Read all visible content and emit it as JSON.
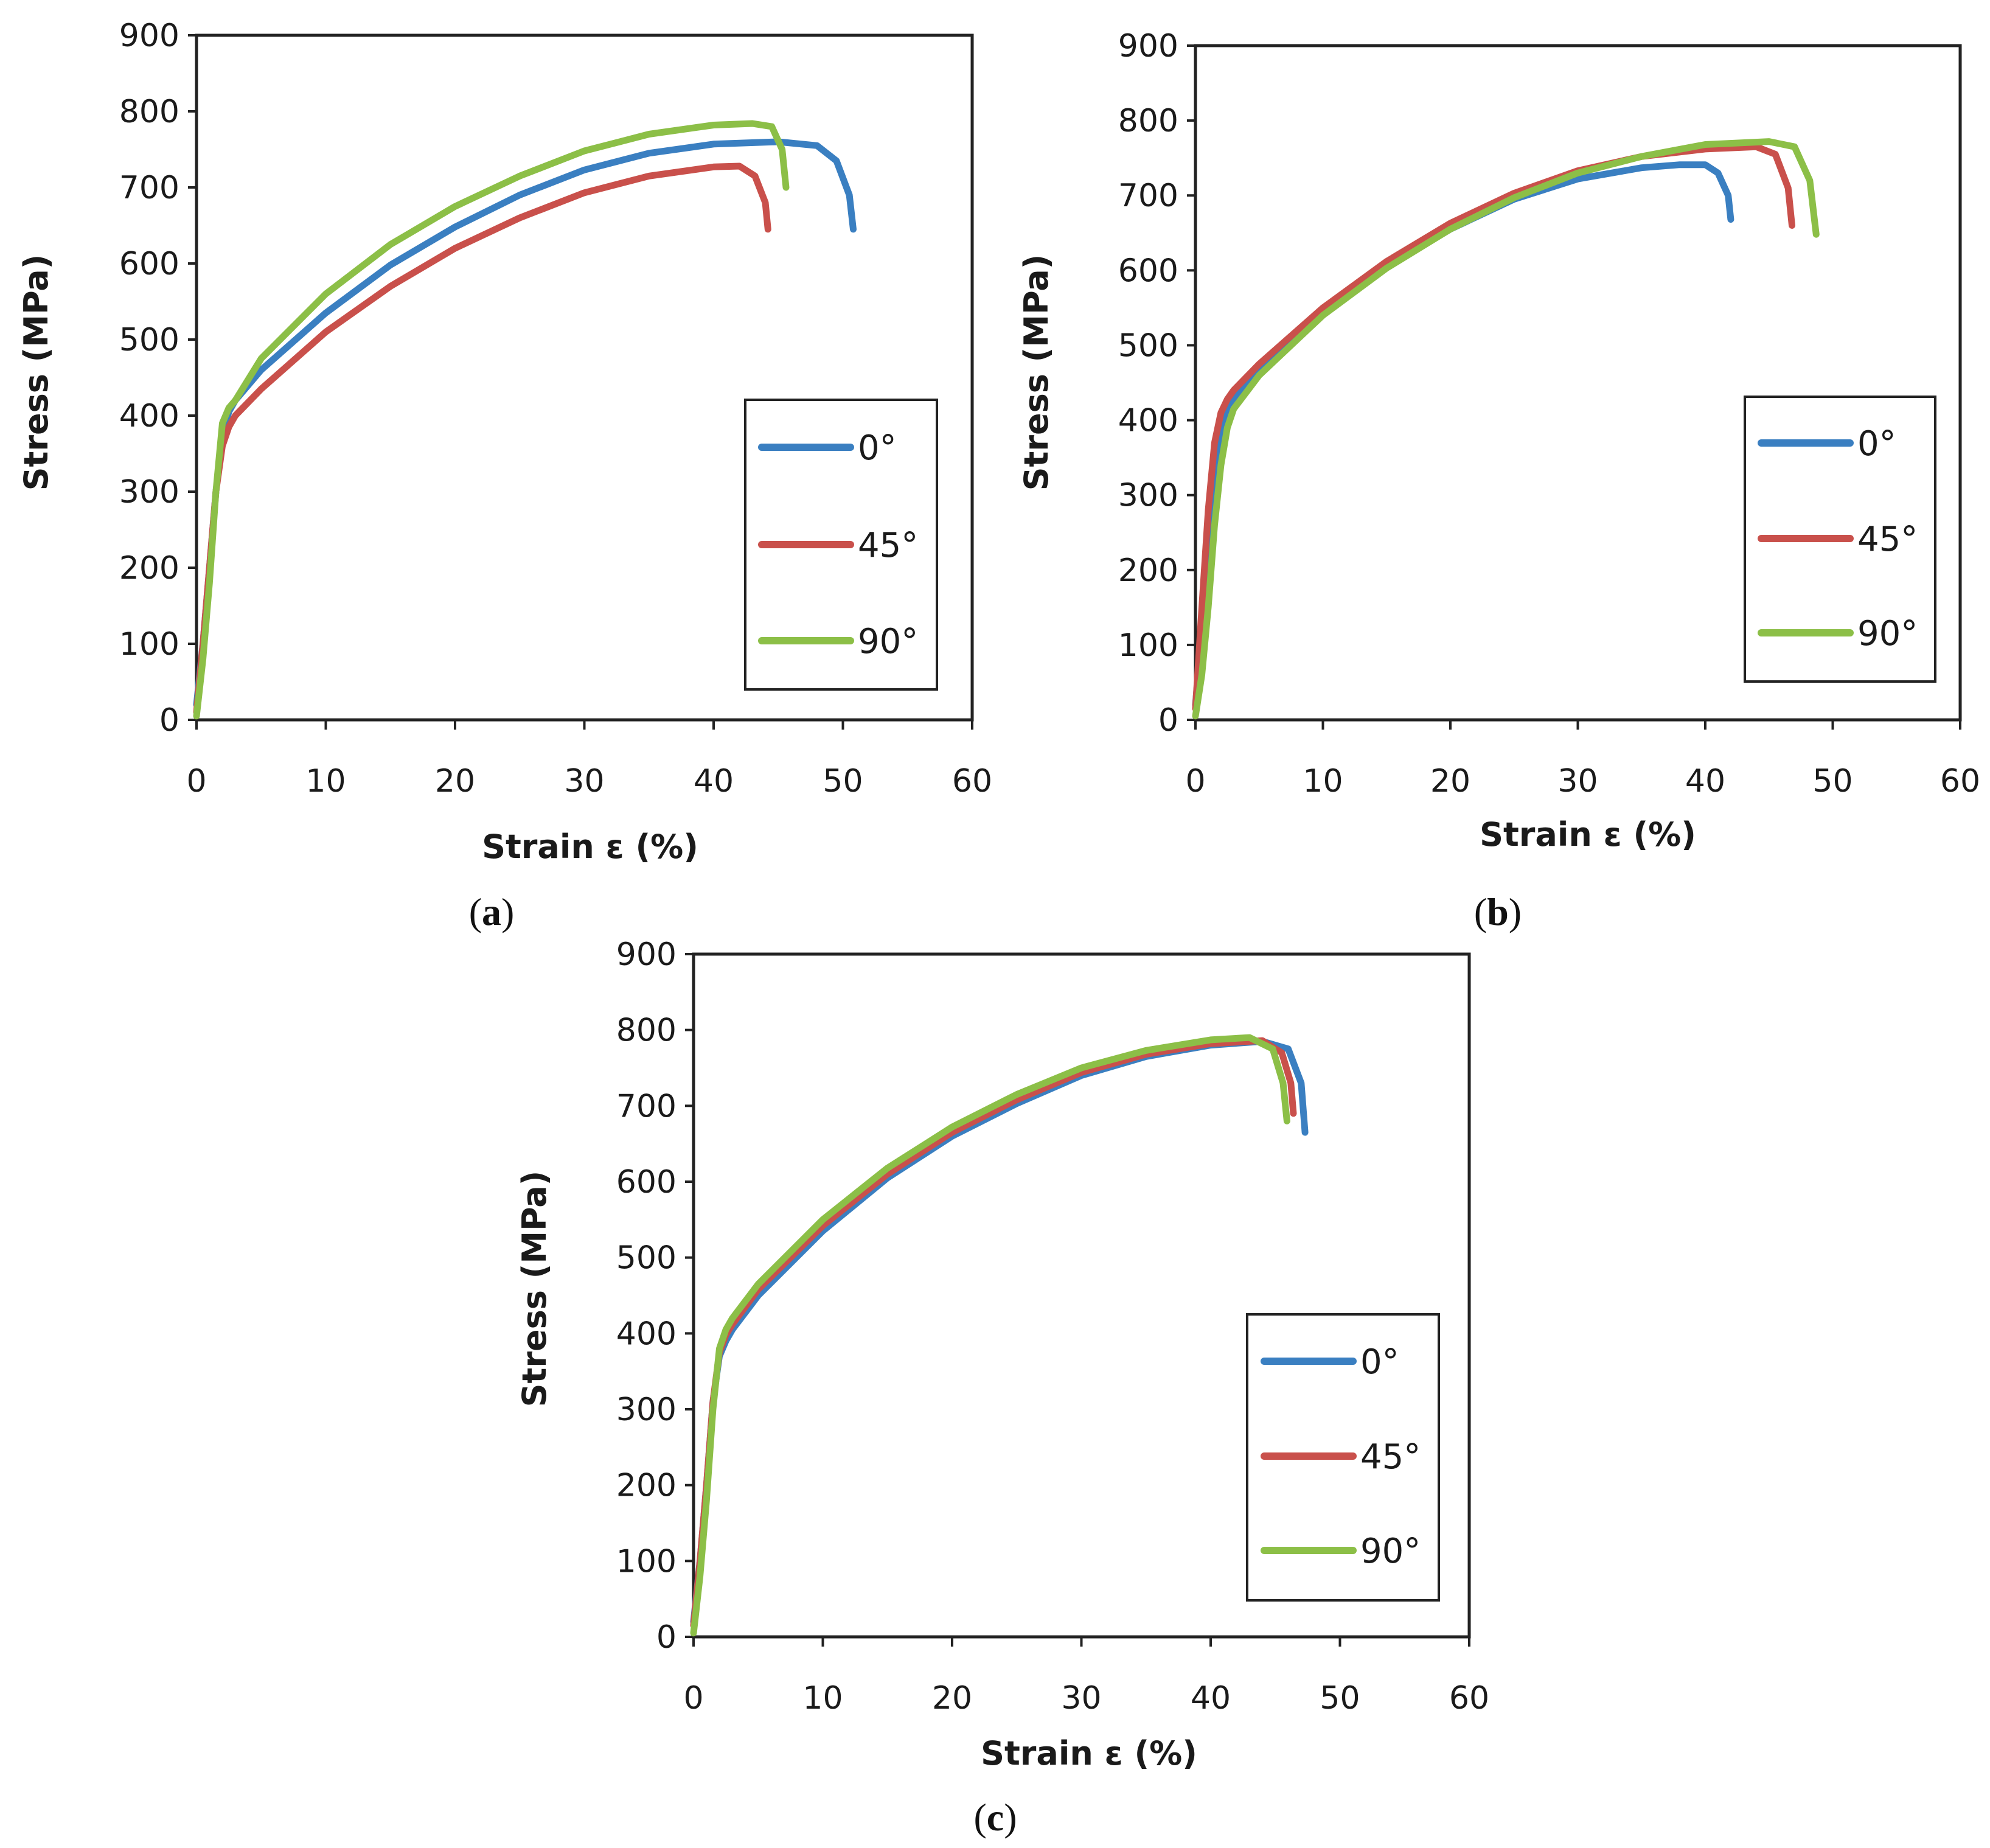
{
  "chart_data": [
    {
      "type": "line",
      "panel_label": "a",
      "xlabel": "Strain ε (%)",
      "ylabel": "Stress (MPa)",
      "xlim": [
        0,
        60
      ],
      "ylim": [
        0,
        900
      ],
      "xticks": [
        0,
        10,
        20,
        30,
        40,
        50,
        60
      ],
      "yticks": [
        0,
        100,
        200,
        300,
        400,
        500,
        600,
        700,
        800,
        900
      ],
      "grid": false,
      "legend_position": "lower-right",
      "series": [
        {
          "name": "0°",
          "color": "#3a7fc1",
          "x": [
            0,
            0.5,
            1.0,
            1.5,
            2.0,
            2.5,
            3.0,
            5,
            10,
            15,
            20,
            25,
            30,
            35,
            40,
            45,
            48,
            49.5,
            50.5,
            50.8
          ],
          "y": [
            20,
            100,
            200,
            300,
            370,
            405,
            420,
            460,
            535,
            598,
            648,
            690,
            723,
            745,
            757,
            760,
            755,
            735,
            690,
            645
          ]
        },
        {
          "name": "45°",
          "color": "#c9504b",
          "x": [
            0,
            0.5,
            1.0,
            1.5,
            2.0,
            2.5,
            3.0,
            5,
            10,
            15,
            20,
            25,
            30,
            35,
            40,
            42,
            43.2,
            44.0,
            44.2
          ],
          "y": [
            10,
            100,
            200,
            300,
            360,
            385,
            400,
            435,
            510,
            570,
            620,
            660,
            693,
            715,
            727,
            728,
            715,
            680,
            645
          ]
        },
        {
          "name": "90°",
          "color": "#8cbf47",
          "x": [
            0,
            0.5,
            1.0,
            1.5,
            2.0,
            2.5,
            3.0,
            5,
            10,
            15,
            20,
            25,
            30,
            35,
            40,
            43,
            44.5,
            45.3,
            45.6
          ],
          "y": [
            5,
            80,
            180,
            300,
            390,
            410,
            420,
            475,
            560,
            625,
            675,
            715,
            748,
            770,
            782,
            784,
            780,
            750,
            700
          ]
        }
      ]
    },
    {
      "type": "line",
      "panel_label": "b",
      "xlabel": "Strain ε (%)",
      "ylabel": "Stress (MPa)",
      "xlim": [
        0,
        60
      ],
      "ylim": [
        0,
        900
      ],
      "xticks": [
        0,
        10,
        20,
        30,
        40,
        50,
        60
      ],
      "yticks": [
        0,
        100,
        200,
        300,
        400,
        500,
        600,
        700,
        800,
        900
      ],
      "grid": false,
      "legend_position": "lower-right",
      "series": [
        {
          "name": "0°",
          "color": "#3a7fc1",
          "x": [
            0,
            0.5,
            1.0,
            1.5,
            2.0,
            2.5,
            3.0,
            5,
            10,
            15,
            20,
            25,
            30,
            35,
            38,
            40,
            41.0,
            41.8,
            42.0
          ],
          "y": [
            20,
            120,
            230,
            330,
            390,
            415,
            428,
            468,
            545,
            605,
            655,
            695,
            722,
            737,
            741,
            741,
            730,
            700,
            668
          ]
        },
        {
          "name": "45°",
          "color": "#c9504b",
          "x": [
            0,
            0.5,
            1.0,
            1.5,
            2.0,
            2.5,
            3.0,
            5,
            10,
            15,
            20,
            25,
            30,
            35,
            40,
            44,
            45.5,
            46.5,
            46.8
          ],
          "y": [
            15,
            150,
            280,
            370,
            410,
            428,
            440,
            475,
            550,
            612,
            663,
            703,
            733,
            752,
            762,
            765,
            755,
            710,
            660
          ]
        },
        {
          "name": "90°",
          "color": "#8cbf47",
          "x": [
            0,
            0.5,
            1.0,
            1.5,
            2.0,
            2.5,
            3.0,
            5,
            10,
            15,
            20,
            25,
            30,
            35,
            40,
            45,
            47.0,
            48.2,
            48.7
          ],
          "y": [
            5,
            60,
            150,
            260,
            340,
            390,
            415,
            460,
            540,
            603,
            655,
            697,
            730,
            752,
            768,
            772,
            765,
            720,
            648
          ]
        }
      ]
    },
    {
      "type": "line",
      "panel_label": "c",
      "xlabel": "Strain ε (%)",
      "ylabel": "Stress (MPa)",
      "xlim": [
        0,
        60
      ],
      "ylim": [
        0,
        900
      ],
      "xticks": [
        0,
        10,
        20,
        30,
        40,
        50,
        60
      ],
      "yticks": [
        0,
        100,
        200,
        300,
        400,
        500,
        600,
        700,
        800,
        900
      ],
      "grid": false,
      "legend_position": "lower-right",
      "series": [
        {
          "name": "0°",
          "color": "#3a7fc1",
          "x": [
            0,
            0.5,
            1.0,
            1.5,
            2.0,
            2.5,
            3.0,
            5,
            10,
            15,
            20,
            25,
            30,
            35,
            40,
            44,
            46.0,
            47.0,
            47.3
          ],
          "y": [
            20,
            100,
            200,
            310,
            370,
            390,
            405,
            450,
            535,
            605,
            660,
            703,
            740,
            765,
            780,
            785,
            775,
            730,
            665
          ]
        },
        {
          "name": "45°",
          "color": "#c9504b",
          "x": [
            0,
            0.5,
            1.0,
            1.5,
            2.0,
            2.5,
            3.0,
            5,
            10,
            15,
            20,
            25,
            30,
            35,
            40,
            44,
            45.5,
            46.2,
            46.4
          ],
          "y": [
            15,
            100,
            200,
            310,
            375,
            398,
            412,
            458,
            542,
            610,
            665,
            708,
            744,
            768,
            782,
            786,
            770,
            730,
            690
          ]
        },
        {
          "name": "90°",
          "color": "#8cbf47",
          "x": [
            0,
            0.5,
            1.0,
            1.5,
            2.0,
            2.5,
            3.0,
            5,
            10,
            15,
            20,
            25,
            30,
            35,
            40,
            43,
            44.8,
            45.6,
            45.9
          ],
          "y": [
            5,
            80,
            180,
            300,
            380,
            405,
            420,
            465,
            550,
            618,
            672,
            715,
            750,
            773,
            787,
            790,
            775,
            730,
            680
          ]
        }
      ]
    }
  ],
  "captions": {
    "a": {
      "open": "(",
      "letter": "a",
      "close": ")"
    },
    "b": {
      "open": "(",
      "letter": "b",
      "close": ")"
    },
    "c": {
      "open": "(",
      "letter": "c",
      "close": ")"
    }
  }
}
